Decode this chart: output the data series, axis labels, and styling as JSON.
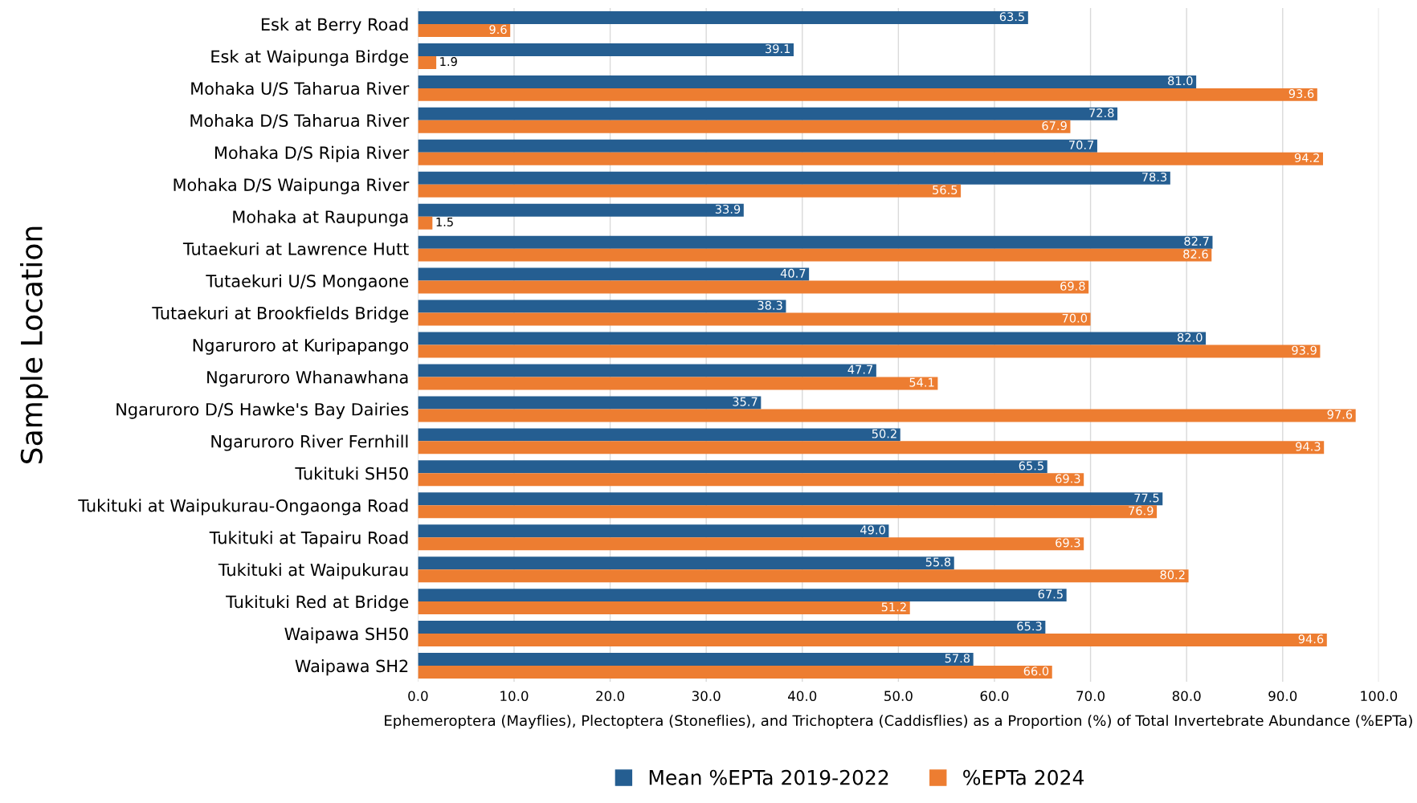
{
  "chart_data": {
    "type": "bar",
    "orientation": "horizontal",
    "xlabel": "Ephemeroptera (Mayflies), Plectoptera (Stoneflies), and Trichoptera (Caddisflies) as a Proportion (%) of Total Invertebrate Abundance (%EPTa)",
    "ylabel": "Sample Location",
    "categories": [
      "Esk at Berry Road",
      "Esk at Waipunga Birdge",
      "Mohaka U/S Taharua River",
      "Mohaka D/S Taharua River",
      "Mohaka D/S Ripia River",
      "Mohaka D/S Waipunga River",
      "Mohaka at Raupunga",
      "Tutaekuri at Lawrence Hutt",
      "Tutaekuri U/S Mongaone",
      "Tutaekuri at Brookfields Bridge",
      "Ngaruroro at Kuripapango",
      "Ngaruroro Whanawhana",
      "Ngaruroro D/S Hawke's Bay Dairies",
      "Ngaruroro River Fernhill",
      "Tukituki SH50",
      "Tukituki at Waipukurau-Ongaonga Road",
      "Tukituki at Tapairu Road",
      "Tukituki at Waipukurau",
      "Tukituki Red at Bridge",
      "Waipawa SH50",
      "Waipawa SH2"
    ],
    "series": [
      {
        "name": "Mean %EPTa 2019-2022",
        "color": "#255e91",
        "values": [
          63.5,
          39.1,
          81,
          72.8,
          70.7,
          78.3,
          33.9,
          82.7,
          40.7,
          38.3,
          82,
          47.7,
          35.7,
          50.2,
          65.5,
          77.5,
          49,
          55.8,
          67.5,
          65.3,
          57.8
        ],
        "value_labels": [
          "63.5",
          "39.1",
          "81.0",
          "72.8",
          "70.7",
          "78.3",
          "33.9",
          "82.7",
          "40.7",
          "38.3",
          "82.0",
          "47.7",
          "35.7",
          "50.2",
          "65.5",
          "77.5",
          "49.0",
          "55.8",
          "67.5",
          "65.3",
          "57.8"
        ]
      },
      {
        "name": "%EPTa 2024",
        "color": "#ed7d31",
        "values": [
          9.6,
          1.9,
          93.6,
          67.9,
          94.2,
          56.5,
          1.5,
          82.6,
          69.8,
          70,
          93.9,
          54.1,
          97.6,
          94.3,
          69.3,
          76.9,
          69.3,
          80.2,
          51.2,
          94.6,
          66
        ],
        "value_labels": [
          "9.6",
          "1.9",
          "93.6",
          "67.9",
          "94.2",
          "56.5",
          "1.5",
          "82.6",
          "69.8",
          "70.0",
          "93.9",
          "54.1",
          "97.6",
          "94.3",
          "69.3",
          "76.9",
          "69.3",
          "80.2",
          "51.2",
          "94.6",
          "66.0"
        ]
      }
    ],
    "xlim": [
      0,
      100
    ],
    "xticks": [
      {
        "value": 0,
        "label": "0.0"
      },
      {
        "value": 10,
        "label": "10.0"
      },
      {
        "value": 20,
        "label": "20.0"
      },
      {
        "value": 30,
        "label": "30.0"
      },
      {
        "value": 40,
        "label": "40.0"
      },
      {
        "value": 50,
        "label": "50.0"
      },
      {
        "value": 60,
        "label": "60.0"
      },
      {
        "value": 70,
        "label": "70.0"
      },
      {
        "value": 80,
        "label": "80.0"
      },
      {
        "value": 90,
        "label": "90.0"
      },
      {
        "value": 100,
        "label": "100.0"
      }
    ],
    "grid": "x",
    "legend": "bottom"
  }
}
